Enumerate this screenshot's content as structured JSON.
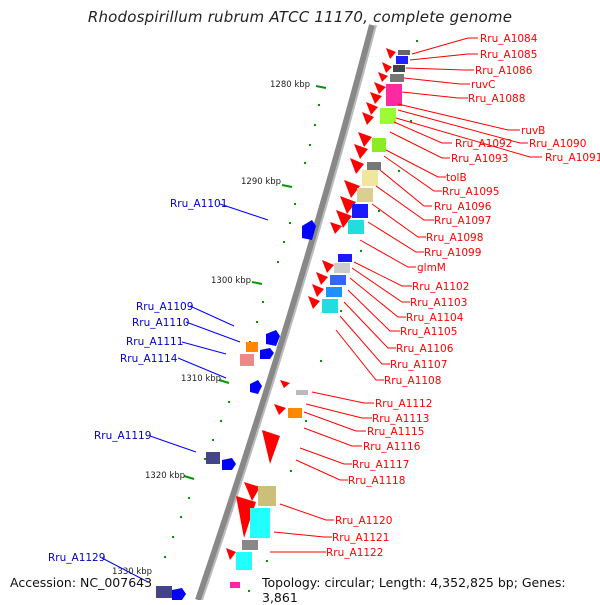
{
  "title": "Rhodospirillum rubrum ATCC 11170, complete genome",
  "accession": "Accession: NC_007643",
  "summary": "Topology: circular; Length: 4,352,825 bp; Genes: 3,861",
  "ticks": [
    "1280 kbp",
    "1290 kbp",
    "1300 kbp",
    "1310 kbp",
    "1320 kbp",
    "1330 kbp"
  ],
  "colors": {
    "forward": "#ff0000",
    "reverse": "#0000ff",
    "backbone": "#888888",
    "tick": "#009900"
  },
  "reverse_genes": [
    "Rru_A1101",
    "Rru_A1109",
    "Rru_A1110",
    "Rru_A1111",
    "Rru_A1114",
    "Rru_A1119",
    "Rru_A1129"
  ],
  "forward_genes": [
    "Rru_A1084",
    "Rru_A1085",
    "Rru_A1086",
    "ruvC",
    "Rru_A1088",
    "ruvB",
    "Rru_A1090",
    "Rru_A1091",
    "Rru_A1092",
    "Rru_A1093",
    "tolB",
    "Rru_A1095",
    "Rru_A1096",
    "Rru_A1097",
    "Rru_A1098",
    "Rru_A1099",
    "glmM",
    "Rru_A1102",
    "Rru_A1103",
    "Rru_A1104",
    "Rru_A1105",
    "Rru_A1106",
    "Rru_A1107",
    "Rru_A1108",
    "Rru_A1112",
    "Rru_A1113",
    "Rru_A1115",
    "Rru_A1116",
    "Rru_A1117",
    "Rru_A1118",
    "Rru_A1120",
    "Rru_A1121",
    "Rru_A1122"
  ]
}
